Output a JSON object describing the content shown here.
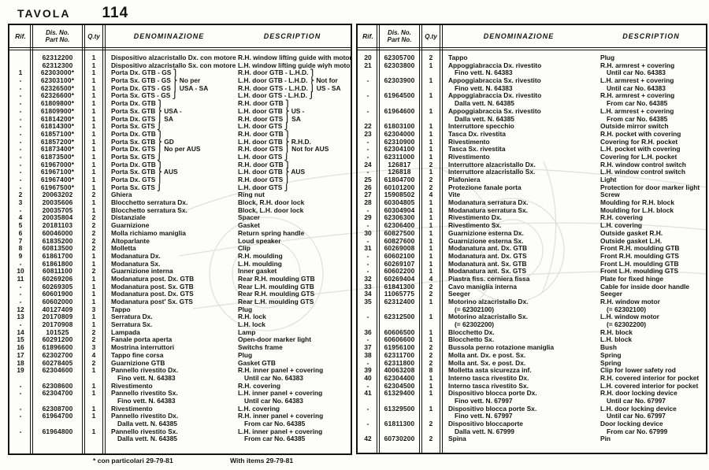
{
  "page": {
    "title_label": "TAVOLA",
    "title_number": "114"
  },
  "table_headers": {
    "rif": "Rif.",
    "dis_no": "Dis. No.",
    "part_no": "Part No.",
    "qty": "Q.ty",
    "denominazione": "DENOMINAZIONE",
    "description": "DESCRIPTION"
  },
  "footnote": {
    "italian": "* con particolari 29-79-81",
    "english": "With items 29-79-81"
  },
  "colors": {
    "ink": "#141414",
    "paper": "#fdfdfc",
    "watermark": "#d9d9d9"
  },
  "watermark_name": "car-line-drawing",
  "left_table": {
    "rows": [
      {
        "rif": "",
        "part": "62312200",
        "qty": "1",
        "den": "Dispositivo alzacristallo Dx. con motore",
        "desc": "R.H. window lifting guide with motor"
      },
      {
        "rif": "",
        "part": "62312300",
        "qty": "1",
        "den": "Dispositivo alzacristallo Sx. con motore",
        "desc": "L.H. window lifting guide wiyh motor"
      },
      {
        "rif": "1",
        "part": "62303000*",
        "qty": "1",
        "den": "Porta Dx. GTB - GS ⎫",
        "desc": "R.H. door GTB - L.H.D. ⎫"
      },
      {
        "rif": "-",
        "part": "62303100*",
        "qty": "1",
        "den": "Porta Sx. GTB - GS ⎬ No per",
        "desc": "L.H. door GTB - L.H.D. ⎬ Not for"
      },
      {
        "rif": "-",
        "part": "62326500*",
        "qty": "1",
        "den": "Porta Dx. GTS - GS ⎪ USA - SA",
        "desc": "R.H. door GTS - L.H.D. ⎪ US - SA"
      },
      {
        "rif": "-",
        "part": "62326600*",
        "qty": "1",
        "den": "Porta Sx. GTS - GS ⎭",
        "desc": "L.H. door GTS - L.H.D. ⎭"
      },
      {
        "rif": "-",
        "part": "61809800*",
        "qty": "1",
        "den": "Porta Dx. GTB ⎫",
        "desc": "R.H. door GTB ⎫"
      },
      {
        "rif": "-",
        "part": "61809900*",
        "qty": "1",
        "den": "Porta Sx. GTB ⎬ USA -",
        "desc": "L.H. door GTB ⎬ US -"
      },
      {
        "rif": "-",
        "part": "61814200*",
        "qty": "1",
        "den": "Porta Dx. GTS ⎪ SA",
        "desc": "R.H. door GTS ⎪ SA"
      },
      {
        "rif": "-",
        "part": "61814300*",
        "qty": "1",
        "den": "Porta Sx. GTS ⎭",
        "desc": "L.H. door GTS ⎭"
      },
      {
        "rif": "-",
        "part": "61857100*",
        "qty": "1",
        "den": "Porta Dx. GTB ⎫",
        "desc": "R.H. door GTB ⎫"
      },
      {
        "rif": "-",
        "part": "61857200*",
        "qty": "1",
        "den": "Porta Sx. GTB ⎬ GD",
        "desc": "L.H. door GTB ⎬ R.H.D."
      },
      {
        "rif": "-",
        "part": "61873400*",
        "qty": "1",
        "den": "Porta Dx. GTS ⎪ No per AUS",
        "desc": "R.H. door GTS ⎪ Not for AUS"
      },
      {
        "rif": "-",
        "part": "61873500*",
        "qty": "1",
        "den": "Porta Sx. GTS ⎭",
        "desc": "L.H. door GTS ⎭"
      },
      {
        "rif": "-",
        "part": "61967000*",
        "qty": "1",
        "den": "Porta Dx. GTB ⎫",
        "desc": "R.H. door GTB ⎫"
      },
      {
        "rif": "-",
        "part": "61967100*",
        "qty": "1",
        "den": "Porta Sx. GTB ⎬ AUS",
        "desc": "L.H. door GTB ⎬ AUS"
      },
      {
        "rif": "-",
        "part": "61967400*",
        "qty": "1",
        "den": "Porta Dx. GTS ⎪",
        "desc": "R.H. door GTS ⎪"
      },
      {
        "rif": "-",
        "part": "61967500*",
        "qty": "1",
        "den": "Porta Sx. GTS ⎭",
        "desc": "L.H. door GTS ⎭"
      },
      {
        "rif": "2",
        "part": "20063202",
        "qty": "2",
        "den": "Ghiera",
        "desc": "Ring nut"
      },
      {
        "rif": "3",
        "part": "20035606",
        "qty": "1",
        "den": "Blocchetto serratura Dx.",
        "desc": "Block, R.H. door lock"
      },
      {
        "rif": "-",
        "part": "20035705",
        "qty": "1",
        "den": "Blocchetto serratura Sx.",
        "desc": "Block, L.H. door lock"
      },
      {
        "rif": "4",
        "part": "20035804",
        "qty": "2",
        "den": "Distanziale",
        "desc": "Spacer"
      },
      {
        "rif": "5",
        "part": "20181103",
        "qty": "2",
        "den": "Guarnizione",
        "desc": "Gasket"
      },
      {
        "rif": "6",
        "part": "60046000",
        "qty": "2",
        "den": "Molla richiamo maniglia",
        "desc": "Return spring handle"
      },
      {
        "rif": "7",
        "part": "61835200",
        "qty": "2",
        "den": "Altoparlante",
        "desc": "Loud speaker"
      },
      {
        "rif": "8",
        "part": "60813500",
        "qty": "2",
        "den": "Molletta",
        "desc": "Clip"
      },
      {
        "rif": "9",
        "part": "61861700",
        "qty": "1",
        "den": "Modanatura Dx.",
        "desc": "R.H. moulding"
      },
      {
        "rif": "-",
        "part": "61861800",
        "qty": "1",
        "den": "Modanatura Sx.",
        "desc": "L.H. moulding"
      },
      {
        "rif": "10",
        "part": "60811100",
        "qty": "2",
        "den": "Guarnizione interna",
        "desc": "Inner gasket"
      },
      {
        "rif": "11",
        "part": "60269206",
        "qty": "1",
        "den": "Modanatura post. Dx. GTB",
        "desc": "Rear R.H. moulding GTB"
      },
      {
        "rif": "-",
        "part": "60269305",
        "qty": "1",
        "den": "Modanatura post. Sx. GTB",
        "desc": "Rear L.H. moulding GTB"
      },
      {
        "rif": "-",
        "part": "60601900",
        "qty": "1",
        "den": "Modanatura post. Dx. GTS",
        "desc": "Rear R.H. moulding GTS"
      },
      {
        "rif": "-",
        "part": "60602000",
        "qty": "1",
        "den": "Modanatura post' Sx. GTS",
        "desc": "Rear L.H. moulding GTS"
      },
      {
        "rif": "12",
        "part": "40127409",
        "qty": "3",
        "den": "Tappo",
        "desc": "Plug"
      },
      {
        "rif": "13",
        "part": "20170809",
        "qty": "1",
        "den": "Serratura Dx.",
        "desc": "R.H. lock"
      },
      {
        "rif": "-",
        "part": "20170908",
        "qty": "1",
        "den": "Serratura Sx.",
        "desc": "L.H. lock"
      },
      {
        "rif": "14",
        "part": "101525",
        "qty": "2",
        "den": "Lampada",
        "desc": "Lamp"
      },
      {
        "rif": "15",
        "part": "60291200",
        "qty": "2",
        "den": "Fanale porta aperta",
        "desc": "Open-door marker light"
      },
      {
        "rif": "16",
        "part": "61896600",
        "qty": "3",
        "den": "Mostrina interruttori",
        "desc": "Switchs frame"
      },
      {
        "rif": "17",
        "part": "62302700",
        "qty": "4",
        "den": "Tappo fine corsa",
        "desc": "Plug"
      },
      {
        "rif": "18",
        "part": "60278405",
        "qty": "2",
        "den": "Guarnizione GTB",
        "desc": "Gasket GTB"
      },
      {
        "rif": "19",
        "part": "62304600",
        "qty": "1",
        "den": "Pannello rivestito Dx.",
        "desc": "R.H. inner panel + covering",
        "sub": [
          [
            "Fino vett. N. 64383",
            "Until car No. 64383"
          ]
        ]
      },
      {
        "rif": "-",
        "part": "62308600",
        "qty": "1",
        "den": "Rivestimento",
        "desc": "R.H. covering"
      },
      {
        "rif": "-",
        "part": "62304700",
        "qty": "1",
        "den": "Pannello rivestito Sx.",
        "desc": "L.H. inner panel + covering",
        "sub": [
          [
            "Fino vett. N. 64383",
            "Until car No. 64383"
          ]
        ]
      },
      {
        "rif": "-",
        "part": "62308700",
        "qty": "1",
        "den": "Rivestimento",
        "desc": "L.H. covering"
      },
      {
        "rif": "-",
        "part": "61964700",
        "qty": "1",
        "den": "Pannello rivestito Dx.",
        "desc": "R.H. inner panel + covering",
        "sub": [
          [
            "Dalla vett. N. 64385",
            "From car No. 64385"
          ]
        ]
      },
      {
        "rif": "-",
        "part": "61964800",
        "qty": "1",
        "den": "Pannello rivestito Sx.",
        "desc": "L.H. inner panel + covering",
        "sub": [
          [
            "Dalla vett. N. 64385",
            "From car No. 64385"
          ]
        ]
      }
    ]
  },
  "right_table": {
    "rows": [
      {
        "rif": "20",
        "part": "62305700",
        "qty": "2",
        "den": "Tappo",
        "desc": "Plug"
      },
      {
        "rif": "21",
        "part": "62303800",
        "qty": "1",
        "den": "Appoggiabraccia Dx. rivestito",
        "desc": "R.H. armrest + covering",
        "sub": [
          [
            "Fino vett. N. 64383",
            "Until car No. 64383"
          ]
        ]
      },
      {
        "rif": "-",
        "part": "62303900",
        "qty": "1",
        "den": "Appoggiabraccia Sx. rivestito",
        "desc": "L.H. armrest + covering",
        "sub": [
          [
            "Fino vett. N. 64383",
            "Until car No. 64383"
          ]
        ]
      },
      {
        "rif": "-",
        "part": "61964500",
        "qty": "1",
        "den": "Appoggiabraccia Dx. rivestito",
        "desc": "R.H. armrest + covering",
        "sub": [
          [
            "Dalla vett. N. 64385",
            "From car No. 64385"
          ]
        ]
      },
      {
        "rif": "-",
        "part": "61964600",
        "qty": "1",
        "den": "Appoggiabraccia Sx. rivestito",
        "desc": "L.H. armrest + covering",
        "sub": [
          [
            "Dalla vett. N. 64385",
            "From car No. 64385"
          ]
        ]
      },
      {
        "rif": "22",
        "part": "61803100",
        "qty": "1",
        "den": "Interruttore specchio",
        "desc": "Outside mirror switch"
      },
      {
        "rif": "23",
        "part": "62304000",
        "qty": "1",
        "den": "Tasca Dx. rivestita",
        "desc": "R.H. pocket with covering"
      },
      {
        "rif": "-",
        "part": "62310900",
        "qty": "1",
        "den": "Rivestimento",
        "desc": "Covering for R.H. pocket"
      },
      {
        "rif": "-",
        "part": "62304100",
        "qty": "1",
        "den": "Tasca Sx. rivestita",
        "desc": "L.H. pocket with covering"
      },
      {
        "rif": "-",
        "part": "62311000",
        "qty": "1",
        "den": "Rivestimento",
        "desc": "Covering for L.H. pocket"
      },
      {
        "rif": "24",
        "part": "126817",
        "qty": "2",
        "den": "Interruttore alzacristallo Dx.",
        "desc": "R.H. window control switch"
      },
      {
        "rif": "-",
        "part": "126818",
        "qty": "1",
        "den": "Interruttore alzacristallo Sx.",
        "desc": "L.H. window control switch"
      },
      {
        "rif": "25",
        "part": "61804700",
        "qty": "2",
        "den": "Plafoniera",
        "desc": "Light"
      },
      {
        "rif": "26",
        "part": "60101200",
        "qty": "2",
        "den": "Protezione fanale porta",
        "desc": "Protection for door marker light"
      },
      {
        "rif": "27",
        "part": "15908502",
        "qty": "4",
        "den": "Vite",
        "desc": "Screw"
      },
      {
        "rif": "28",
        "part": "60304805",
        "qty": "1",
        "den": "Modanatura serratura Dx.",
        "desc": "Moulding for R.H. block"
      },
      {
        "rif": "-",
        "part": "60304904",
        "qty": "1",
        "den": "Modanatura serratura Sx.",
        "desc": "Moulding for L.H. block"
      },
      {
        "rif": "29",
        "part": "62306300",
        "qty": "1",
        "den": "Rivestimento Dx.",
        "desc": "R.H. covering"
      },
      {
        "rif": "-",
        "part": "62306400",
        "qty": "1",
        "den": "Rivestimento Sx.",
        "desc": "L.H. covering"
      },
      {
        "rif": "30",
        "part": "60827500",
        "qty": "1",
        "den": "Guarnizione esterna Dx.",
        "desc": "Outside gasket R.H."
      },
      {
        "rif": "-",
        "part": "60827600",
        "qty": "1",
        "den": "Guarnizione esterna Sx.",
        "desc": "Outside gasket L.H."
      },
      {
        "rif": "31",
        "part": "60269008",
        "qty": "1",
        "den": "Modanatura ant. Dx. GTB",
        "desc": "Front R.H. moulding GTB"
      },
      {
        "rif": "-",
        "part": "60602100",
        "qty": "1",
        "den": "Modanatura ant. Dx. GTS",
        "desc": "Front R.H. moulding GTS"
      },
      {
        "rif": "-",
        "part": "60269107",
        "qty": "1",
        "den": "Modanatura ant. Sx. GTB",
        "desc": "Front L.H. moulding GTB"
      },
      {
        "rif": "-",
        "part": "60602200",
        "qty": "1",
        "den": "Modanatura ant. Sx. GTS",
        "desc": "Front L.H. moulding GTS"
      },
      {
        "rif": "32",
        "part": "60269404",
        "qty": "4",
        "den": "Piastra fiss. cerniera fissa",
        "desc": "Plate for fixed hinge"
      },
      {
        "rif": "33",
        "part": "61841300",
        "qty": "2",
        "den": "Cavo maniglia interna",
        "desc": "Cable for inside door handle"
      },
      {
        "rif": "34",
        "part": "11065775",
        "qty": "2",
        "den": "Seeger",
        "desc": "Seeger"
      },
      {
        "rif": "35",
        "part": "62312400",
        "qty": "1",
        "den": "Motorino alzacristallo Dx.",
        "desc": "R.H. window motor",
        "sub": [
          [
            "(= 62302100)",
            "(= 62302100)"
          ]
        ]
      },
      {
        "rif": "-",
        "part": "62312500",
        "qty": "1",
        "den": "Motorino alzacristallo Sx.",
        "desc": "L.H. window motor",
        "sub": [
          [
            "(= 62302200)",
            "(= 62302200)"
          ]
        ]
      },
      {
        "rif": "36",
        "part": "60606500",
        "qty": "1",
        "den": "Blocchetto Dx.",
        "desc": "R.H. block"
      },
      {
        "rif": "-",
        "part": "60606600",
        "qty": "1",
        "den": "Blocchetto Sx.",
        "desc": "L.H. block"
      },
      {
        "rif": "37",
        "part": "61956100",
        "qty": "2",
        "den": "Bussola perno rotazione maniglia",
        "desc": "Bush"
      },
      {
        "rif": "38",
        "part": "62311700",
        "qty": "2",
        "den": "Molla ant. Dx. e post. Sx.",
        "desc": "Spring"
      },
      {
        "rif": "-",
        "part": "62311800",
        "qty": "2",
        "den": "Molla ant. Sx. e post. Dx.",
        "desc": "Spring"
      },
      {
        "rif": "39",
        "part": "40063208",
        "qty": "8",
        "den": "Molletta asta sicurezza inf.",
        "desc": "Clip for lower safety rod"
      },
      {
        "rif": "40",
        "part": "62304400",
        "qty": "1",
        "den": "Interno tasca rivestito Dx.",
        "desc": "R.H. covered interior for pocket"
      },
      {
        "rif": "-",
        "part": "62304500",
        "qty": "1",
        "den": "Interno tasca rivestito Sx.",
        "desc": "L.H. covered interior for pocket"
      },
      {
        "rif": "41",
        "part": "61329400",
        "qty": "1",
        "den": "Dispositivo blocca porte Dx.",
        "desc": "R.H. door locking device",
        "sub": [
          [
            "Fino vett. N. 67997",
            "Until car No. 67997"
          ]
        ]
      },
      {
        "rif": "-",
        "part": "61329500",
        "qty": "1",
        "den": "Dispositivo blocca porte Sx.",
        "desc": "L.H. door locking device",
        "sub": [
          [
            "Fino vett. N. 67997",
            "Until car No. 67997"
          ]
        ]
      },
      {
        "rif": "-",
        "part": "61811300",
        "qty": "2",
        "den": "Dispositivo bloccaporte",
        "desc": "Door locking device",
        "sub": [
          [
            "Dalla vett. N. 67999",
            "From car No. 67999"
          ]
        ]
      },
      {
        "rif": "42",
        "part": "60730200",
        "qty": "2",
        "den": "Spina",
        "desc": "Pin"
      }
    ]
  }
}
